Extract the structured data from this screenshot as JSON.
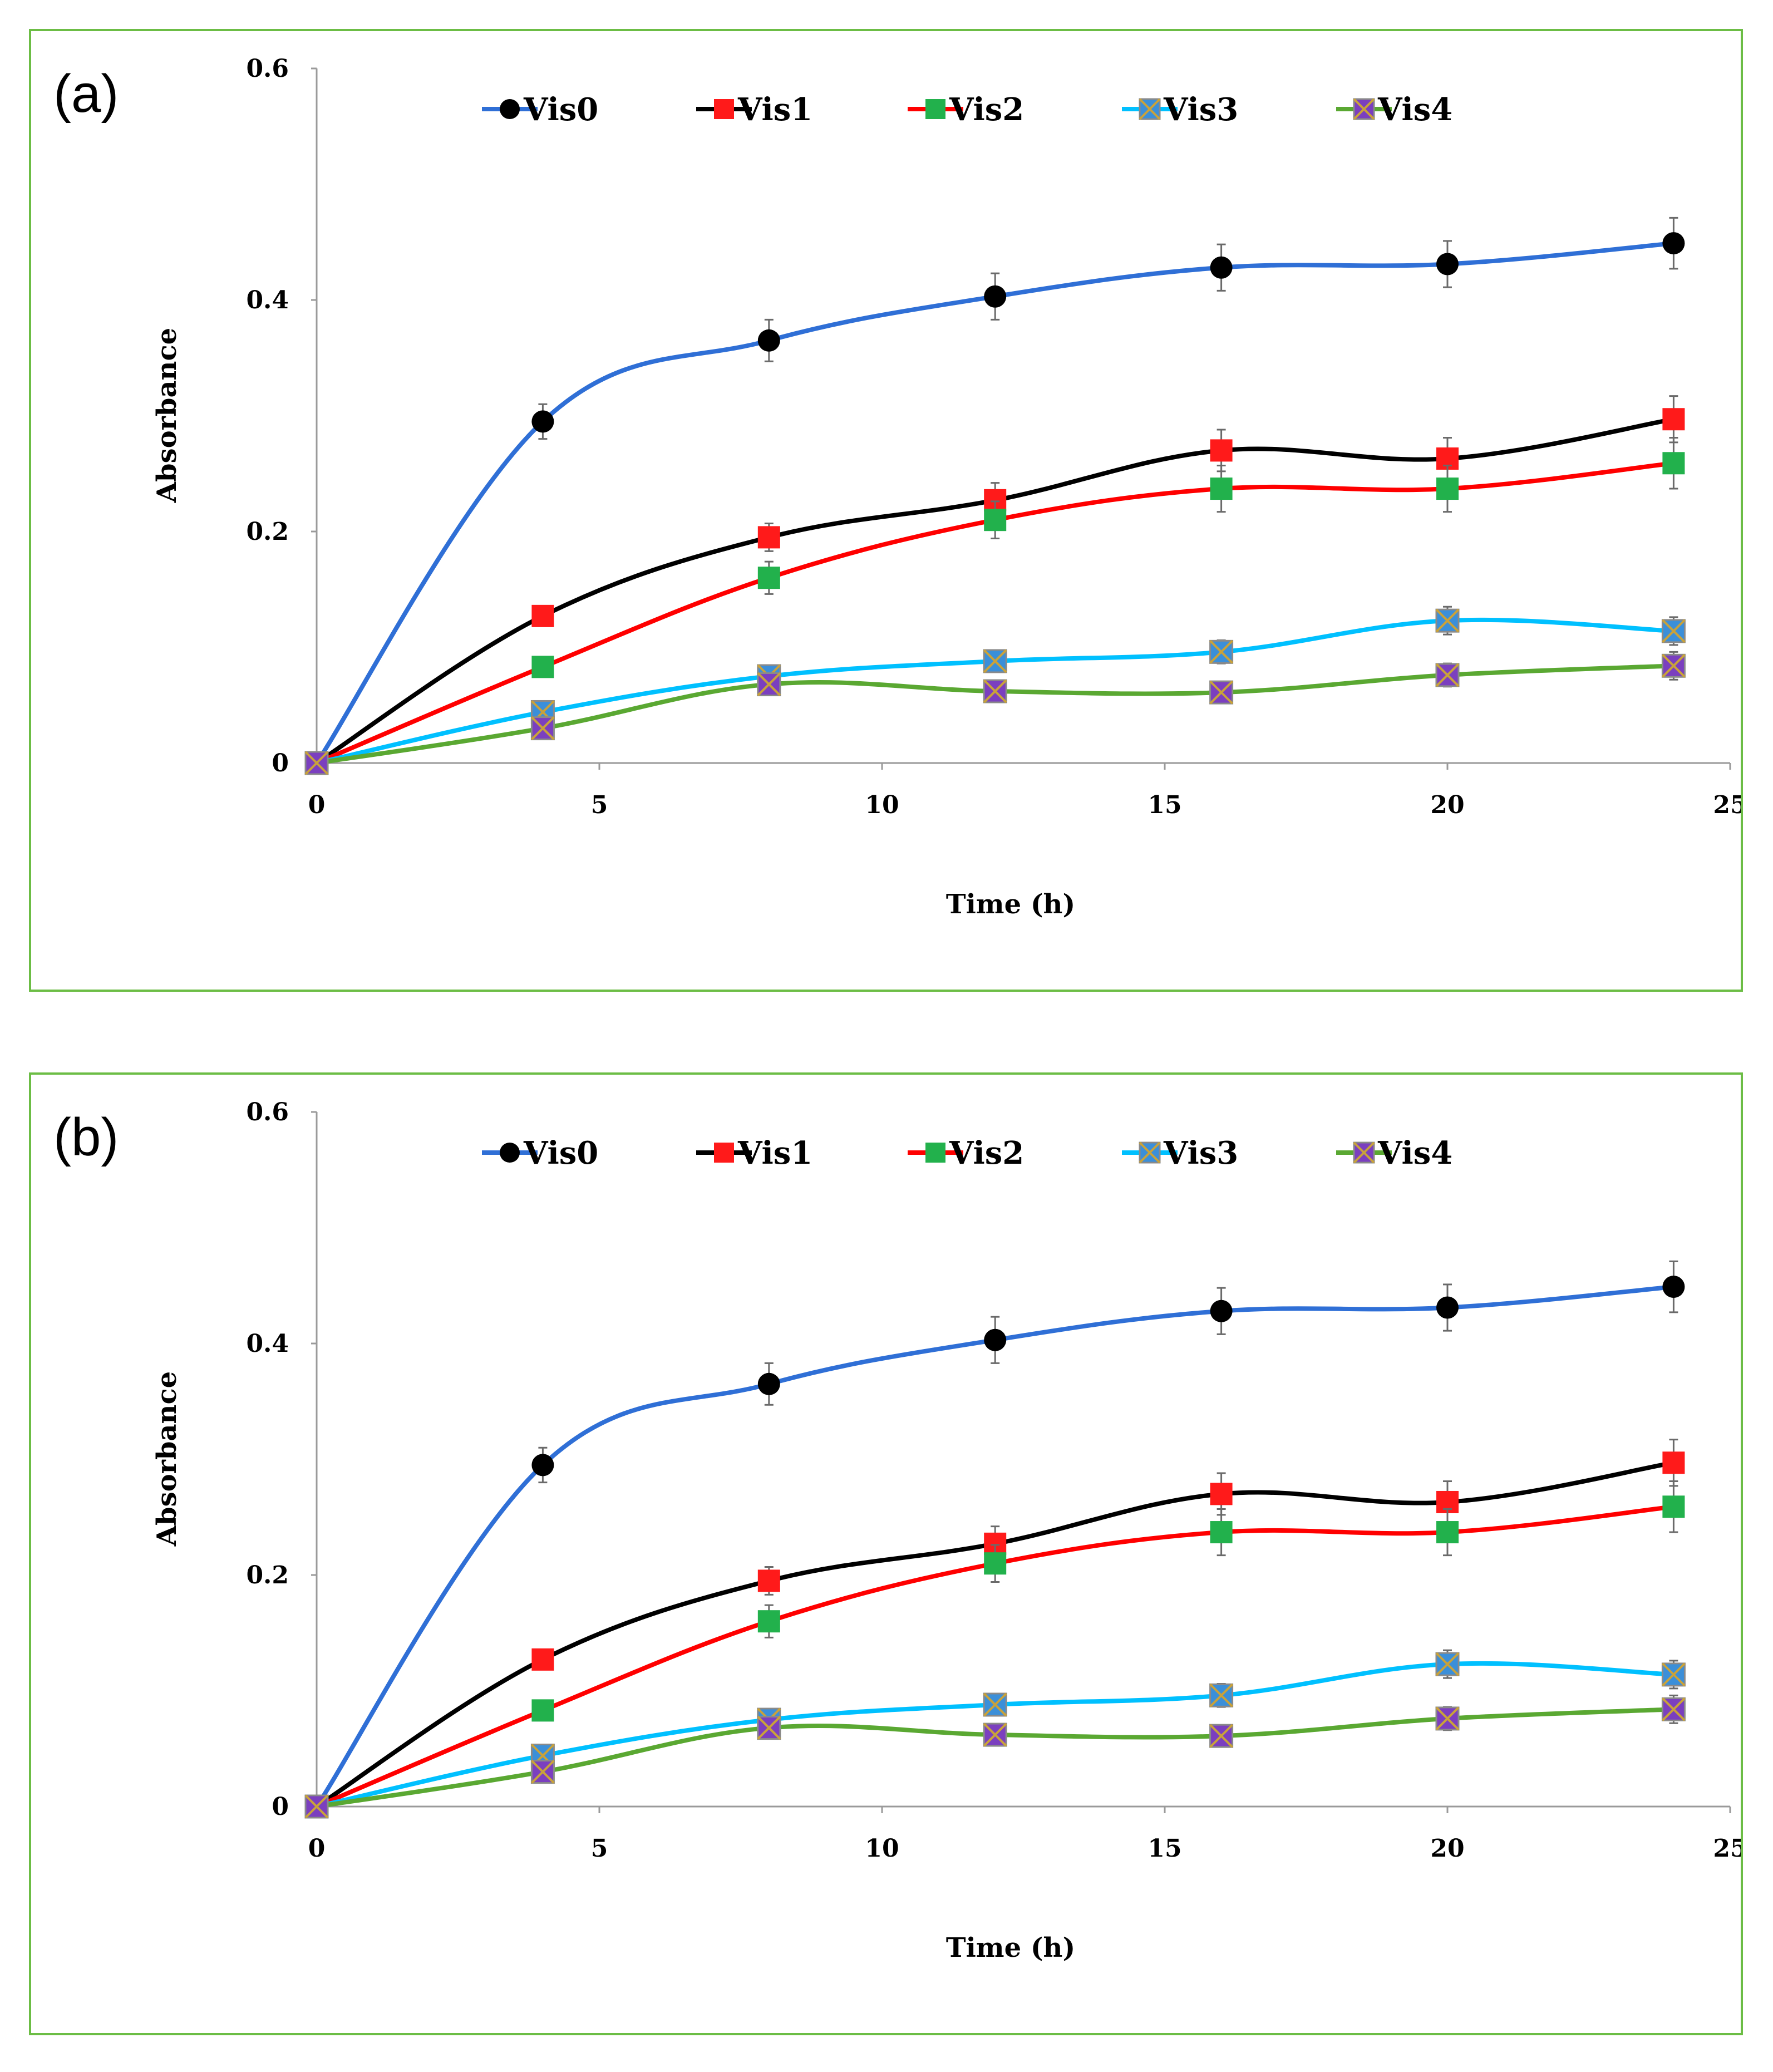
{
  "chart_data": [
    {
      "type": "line",
      "panel_label": "(a)",
      "xlabel": "Time (h)",
      "ylabel": "Absorbance",
      "xlim": [
        0,
        25
      ],
      "ylim": [
        0,
        0.6
      ],
      "x_ticks": [
        "0",
        "5",
        "10",
        "15",
        "20",
        "25"
      ],
      "y_ticks": [
        "0",
        "0.2",
        "0.4",
        "0.6"
      ],
      "x": [
        0,
        4,
        8,
        12,
        16,
        20,
        24
      ],
      "series": [
        {
          "name": "Vis0",
          "marker": "circle",
          "marker_color": "#000000",
          "line_color": "#2f6fd6",
          "values": [
            0,
            0.295,
            0.365,
            0.403,
            0.428,
            0.431,
            0.449
          ],
          "errors": [
            0,
            0.015,
            0.018,
            0.02,
            0.02,
            0.02,
            0.022
          ]
        },
        {
          "name": "Vis1",
          "marker": "square",
          "marker_color": "#ff1a1a",
          "line_color": "#000000",
          "values": [
            0,
            0.127,
            0.195,
            0.227,
            0.27,
            0.263,
            0.297
          ],
          "errors": [
            0,
            0.008,
            0.012,
            0.015,
            0.018,
            0.018,
            0.02
          ]
        },
        {
          "name": "Vis2",
          "marker": "square",
          "marker_color": "#22b14c",
          "line_color": "#ff0000",
          "values": [
            0,
            0.083,
            0.16,
            0.21,
            0.237,
            0.237,
            0.259
          ],
          "errors": [
            0,
            0.008,
            0.014,
            0.016,
            0.02,
            0.02,
            0.022
          ]
        },
        {
          "name": "Vis3",
          "marker": "x-square",
          "marker_color": "#3b8fd9",
          "line_color": "#00c0ff",
          "values": [
            0,
            0.044,
            0.075,
            0.088,
            0.096,
            0.123,
            0.114
          ],
          "errors": [
            0,
            0.005,
            0.008,
            0.008,
            0.01,
            0.012,
            0.012
          ]
        },
        {
          "name": "Vis4",
          "marker": "x-square",
          "marker_color": "#7b3fbf",
          "line_color": "#5aa832",
          "values": [
            0,
            0.03,
            0.068,
            0.062,
            0.061,
            0.076,
            0.084
          ],
          "errors": [
            0,
            0.004,
            0.006,
            0.006,
            0.006,
            0.01,
            0.012
          ]
        }
      ]
    },
    {
      "type": "line",
      "panel_label": "(b)",
      "xlabel": "Time (h)",
      "ylabel": "Absorbance",
      "xlim": [
        0,
        25
      ],
      "ylim": [
        0,
        0.6
      ],
      "x_ticks": [
        "0",
        "5",
        "10",
        "15",
        "20",
        "25"
      ],
      "y_ticks": [
        "0",
        "0.2",
        "0.4",
        "0.6"
      ],
      "x": [
        0,
        4,
        8,
        12,
        16,
        20,
        24
      ],
      "series": [
        {
          "name": "Vis0",
          "marker": "circle",
          "marker_color": "#000000",
          "line_color": "#2f6fd6",
          "values": [
            0,
            0.295,
            0.365,
            0.403,
            0.428,
            0.431,
            0.449
          ],
          "errors": [
            0,
            0.015,
            0.018,
            0.02,
            0.02,
            0.02,
            0.022
          ]
        },
        {
          "name": "Vis1",
          "marker": "square",
          "marker_color": "#ff1a1a",
          "line_color": "#000000",
          "values": [
            0,
            0.127,
            0.195,
            0.227,
            0.27,
            0.263,
            0.297
          ],
          "errors": [
            0,
            0.008,
            0.012,
            0.015,
            0.018,
            0.018,
            0.02
          ]
        },
        {
          "name": "Vis2",
          "marker": "square",
          "marker_color": "#22b14c",
          "line_color": "#ff0000",
          "values": [
            0,
            0.083,
            0.16,
            0.21,
            0.237,
            0.237,
            0.259
          ],
          "errors": [
            0,
            0.008,
            0.014,
            0.016,
            0.02,
            0.02,
            0.022
          ]
        },
        {
          "name": "Vis3",
          "marker": "x-square",
          "marker_color": "#3b8fd9",
          "line_color": "#00c0ff",
          "values": [
            0,
            0.044,
            0.075,
            0.088,
            0.096,
            0.123,
            0.114
          ],
          "errors": [
            0,
            0.005,
            0.008,
            0.008,
            0.01,
            0.012,
            0.012
          ]
        },
        {
          "name": "Vis4",
          "marker": "x-square",
          "marker_color": "#7b3fbf",
          "line_color": "#5aa832",
          "values": [
            0,
            0.03,
            0.068,
            0.062,
            0.061,
            0.076,
            0.084
          ],
          "errors": [
            0,
            0.004,
            0.006,
            0.006,
            0.006,
            0.01,
            0.012
          ]
        }
      ]
    }
  ]
}
